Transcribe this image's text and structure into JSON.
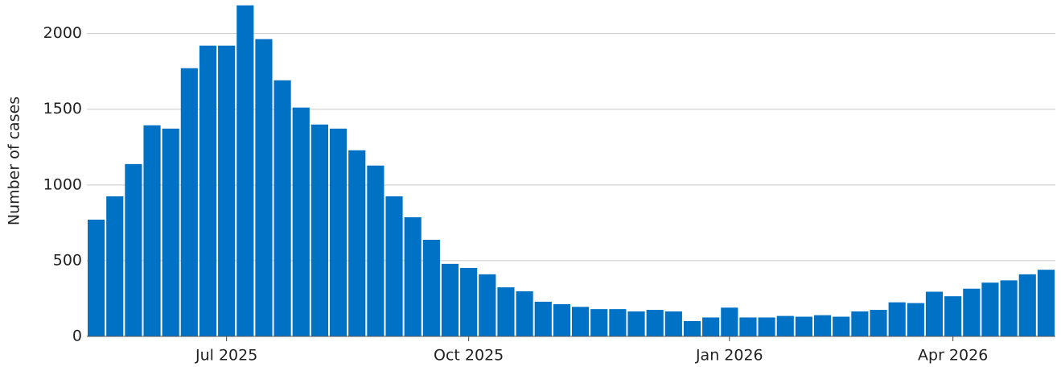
{
  "chart_data": {
    "type": "bar",
    "y_label": "Number of cases",
    "categories": [
      null,
      null,
      null,
      null,
      null,
      null,
      null,
      "Jul 2025",
      null,
      null,
      null,
      null,
      null,
      null,
      null,
      null,
      null,
      null,
      null,
      null,
      "Oct 2025",
      null,
      null,
      null,
      null,
      null,
      null,
      null,
      null,
      null,
      null,
      null,
      null,
      null,
      "Jan 2026",
      null,
      null,
      null,
      null,
      null,
      null,
      null,
      null,
      null,
      null,
      null,
      "Apr 2026",
      null,
      null,
      null,
      null,
      null
    ],
    "values": [
      771,
      925,
      1138,
      1394,
      1372,
      1771,
      1920,
      1920,
      2186,
      1963,
      1691,
      1511,
      1399,
      1372,
      1229,
      1128,
      925,
      787,
      638,
      479,
      452,
      410,
      324,
      298,
      229,
      213,
      195,
      180,
      180,
      165,
      175,
      165,
      101,
      125,
      190,
      125,
      125,
      135,
      130,
      140,
      130,
      165,
      175,
      225,
      220,
      295,
      265,
      315,
      355,
      370,
      410,
      440
    ],
    "color": "#0072c6",
    "ylim": [
      0,
      2200
    ],
    "yticks": [
      0,
      500,
      1000,
      1500,
      2000
    ],
    "grid": true
  }
}
